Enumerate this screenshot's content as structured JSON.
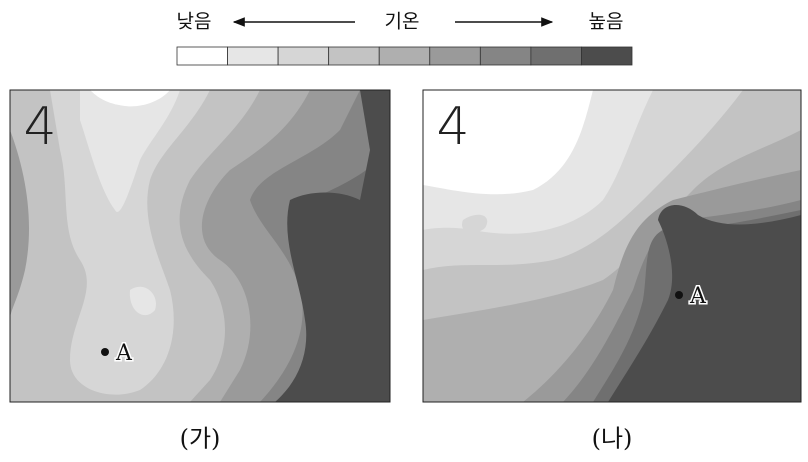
{
  "legend": {
    "low": "낮음",
    "title": "기온",
    "high": "높음",
    "colors": [
      "#ffffff",
      "#e6e6e6",
      "#d6d6d6",
      "#c3c3c3",
      "#afafaf",
      "#9a9a9a",
      "#858585",
      "#6f6f6f",
      "#4c4c4c"
    ]
  },
  "maps": [
    {
      "mark": "4",
      "point": "A",
      "caption": "(가)"
    },
    {
      "mark": "4",
      "point": "A",
      "caption": "(나)"
    }
  ]
}
